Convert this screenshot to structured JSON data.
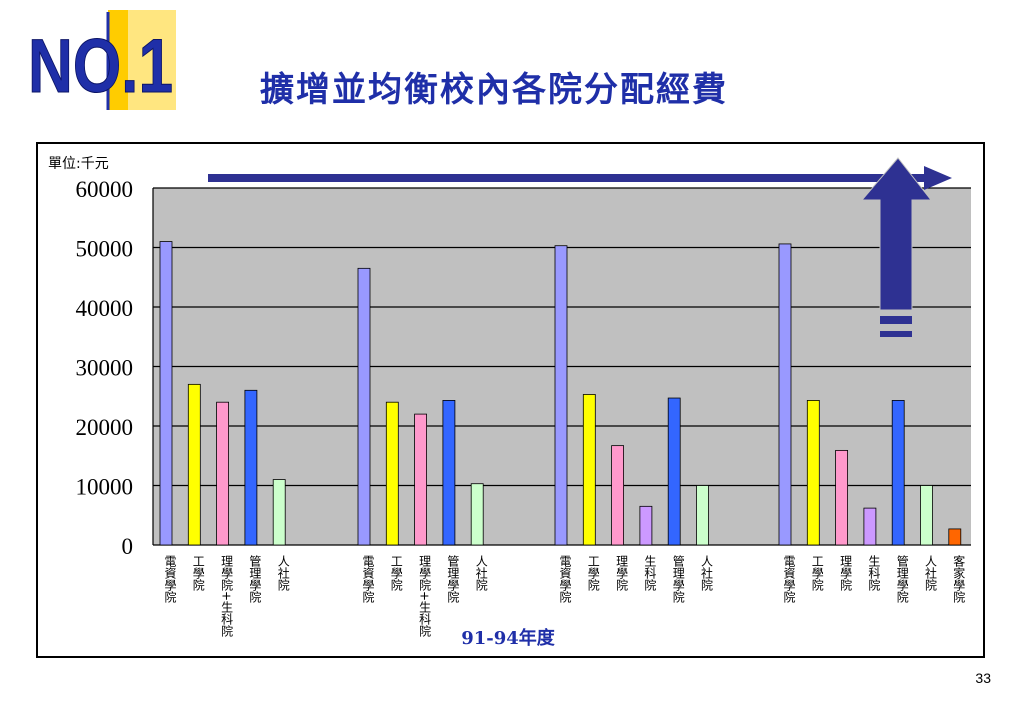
{
  "logo_text": "NO.1",
  "title": "擴增並均衡校內各院分配經費",
  "slide_number": "33",
  "colors": {
    "title": "#1f2fa8",
    "plot_bg": "#c0c0c0",
    "arrow": "#2e3192",
    "series": {
      "電資學院": "#9999ff",
      "工學院": "#ffff00",
      "理學院+生科院": "#ff99cc",
      "理學院": "#ff99cc",
      "生科院": "#cc99ff",
      "管理學院": "#3366ff",
      "人社院": "#ccffcc",
      "客家學院": "#ff6600"
    }
  },
  "icons": [
    "horizontal-arrow-icon",
    "up-arrow-icon"
  ],
  "chart_data": {
    "type": "bar",
    "unit_label": "單位:千元",
    "xlabel": "91-94年度",
    "ylabel": "",
    "ylim": [
      0,
      60000
    ],
    "yticks": [
      "0",
      "10000",
      "20000",
      "30000",
      "40000",
      "50000",
      "60000"
    ],
    "grid": true,
    "groups": [
      {
        "bars": [
          {
            "category": "電資學院",
            "value": 51000
          },
          {
            "category": "工學院",
            "value": 27000
          },
          {
            "category": "理學院+生科院",
            "value": 24000
          },
          {
            "category": "管理學院",
            "value": 26000
          },
          {
            "category": "人社院",
            "value": 11000
          }
        ]
      },
      {
        "bars": [
          {
            "category": "電資學院",
            "value": 46500
          },
          {
            "category": "工學院",
            "value": 24000
          },
          {
            "category": "理學院+生科院",
            "value": 22000
          },
          {
            "category": "管理學院",
            "value": 24300
          },
          {
            "category": "人社院",
            "value": 10300
          }
        ]
      },
      {
        "bars": [
          {
            "category": "電資學院",
            "value": 50300
          },
          {
            "category": "工學院",
            "value": 25300
          },
          {
            "category": "理學院",
            "value": 16700
          },
          {
            "category": "生科院",
            "value": 6500
          },
          {
            "category": "管理學院",
            "value": 24700
          },
          {
            "category": "人社院",
            "value": 10000
          }
        ]
      },
      {
        "bars": [
          {
            "category": "電資學院",
            "value": 50600
          },
          {
            "category": "工學院",
            "value": 24300
          },
          {
            "category": "理學院",
            "value": 15900
          },
          {
            "category": "生科院",
            "value": 6200
          },
          {
            "category": "管理學院",
            "value": 24300
          },
          {
            "category": "人社院",
            "value": 10000
          },
          {
            "category": "客家學院",
            "value": 2700
          }
        ]
      }
    ]
  }
}
